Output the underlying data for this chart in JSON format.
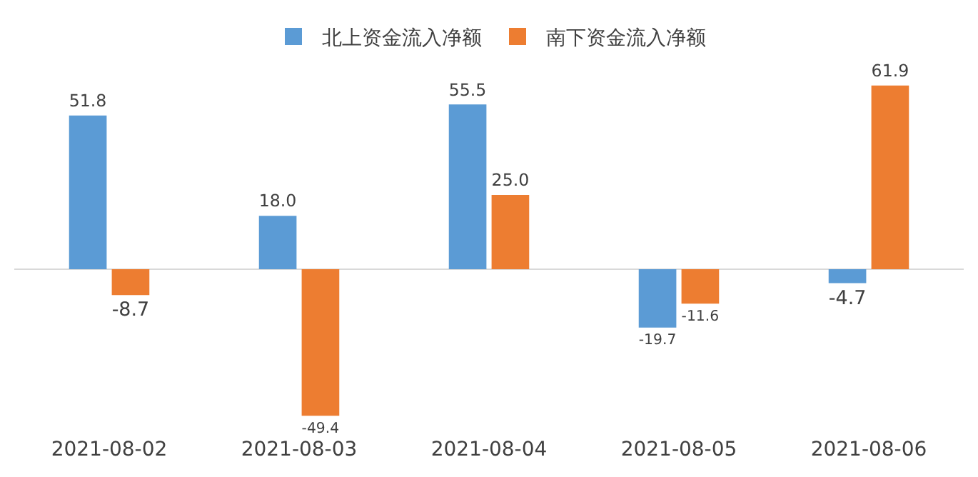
{
  "chart_data": {
    "type": "bar",
    "categories": [
      "2021-08-02",
      "2021-08-03",
      "2021-08-04",
      "2021-08-05",
      "2021-08-06"
    ],
    "series": [
      {
        "name": "北上资金流入净额",
        "color": "#5b9bd5",
        "values": [
          51.8,
          18.0,
          55.5,
          -19.7,
          -4.7
        ],
        "value_labels": [
          "51.8",
          "18.0",
          "55.5",
          "-19.7",
          "-4.7"
        ]
      },
      {
        "name": "南下资金流入净额",
        "color": "#ed7d31",
        "values": [
          -8.7,
          -49.4,
          25.0,
          -11.6,
          61.9
        ],
        "value_labels": [
          "-8.7",
          "-49.4",
          "25.0",
          "-11.6",
          "61.9"
        ]
      }
    ],
    "legend": "top",
    "grid": false
  }
}
